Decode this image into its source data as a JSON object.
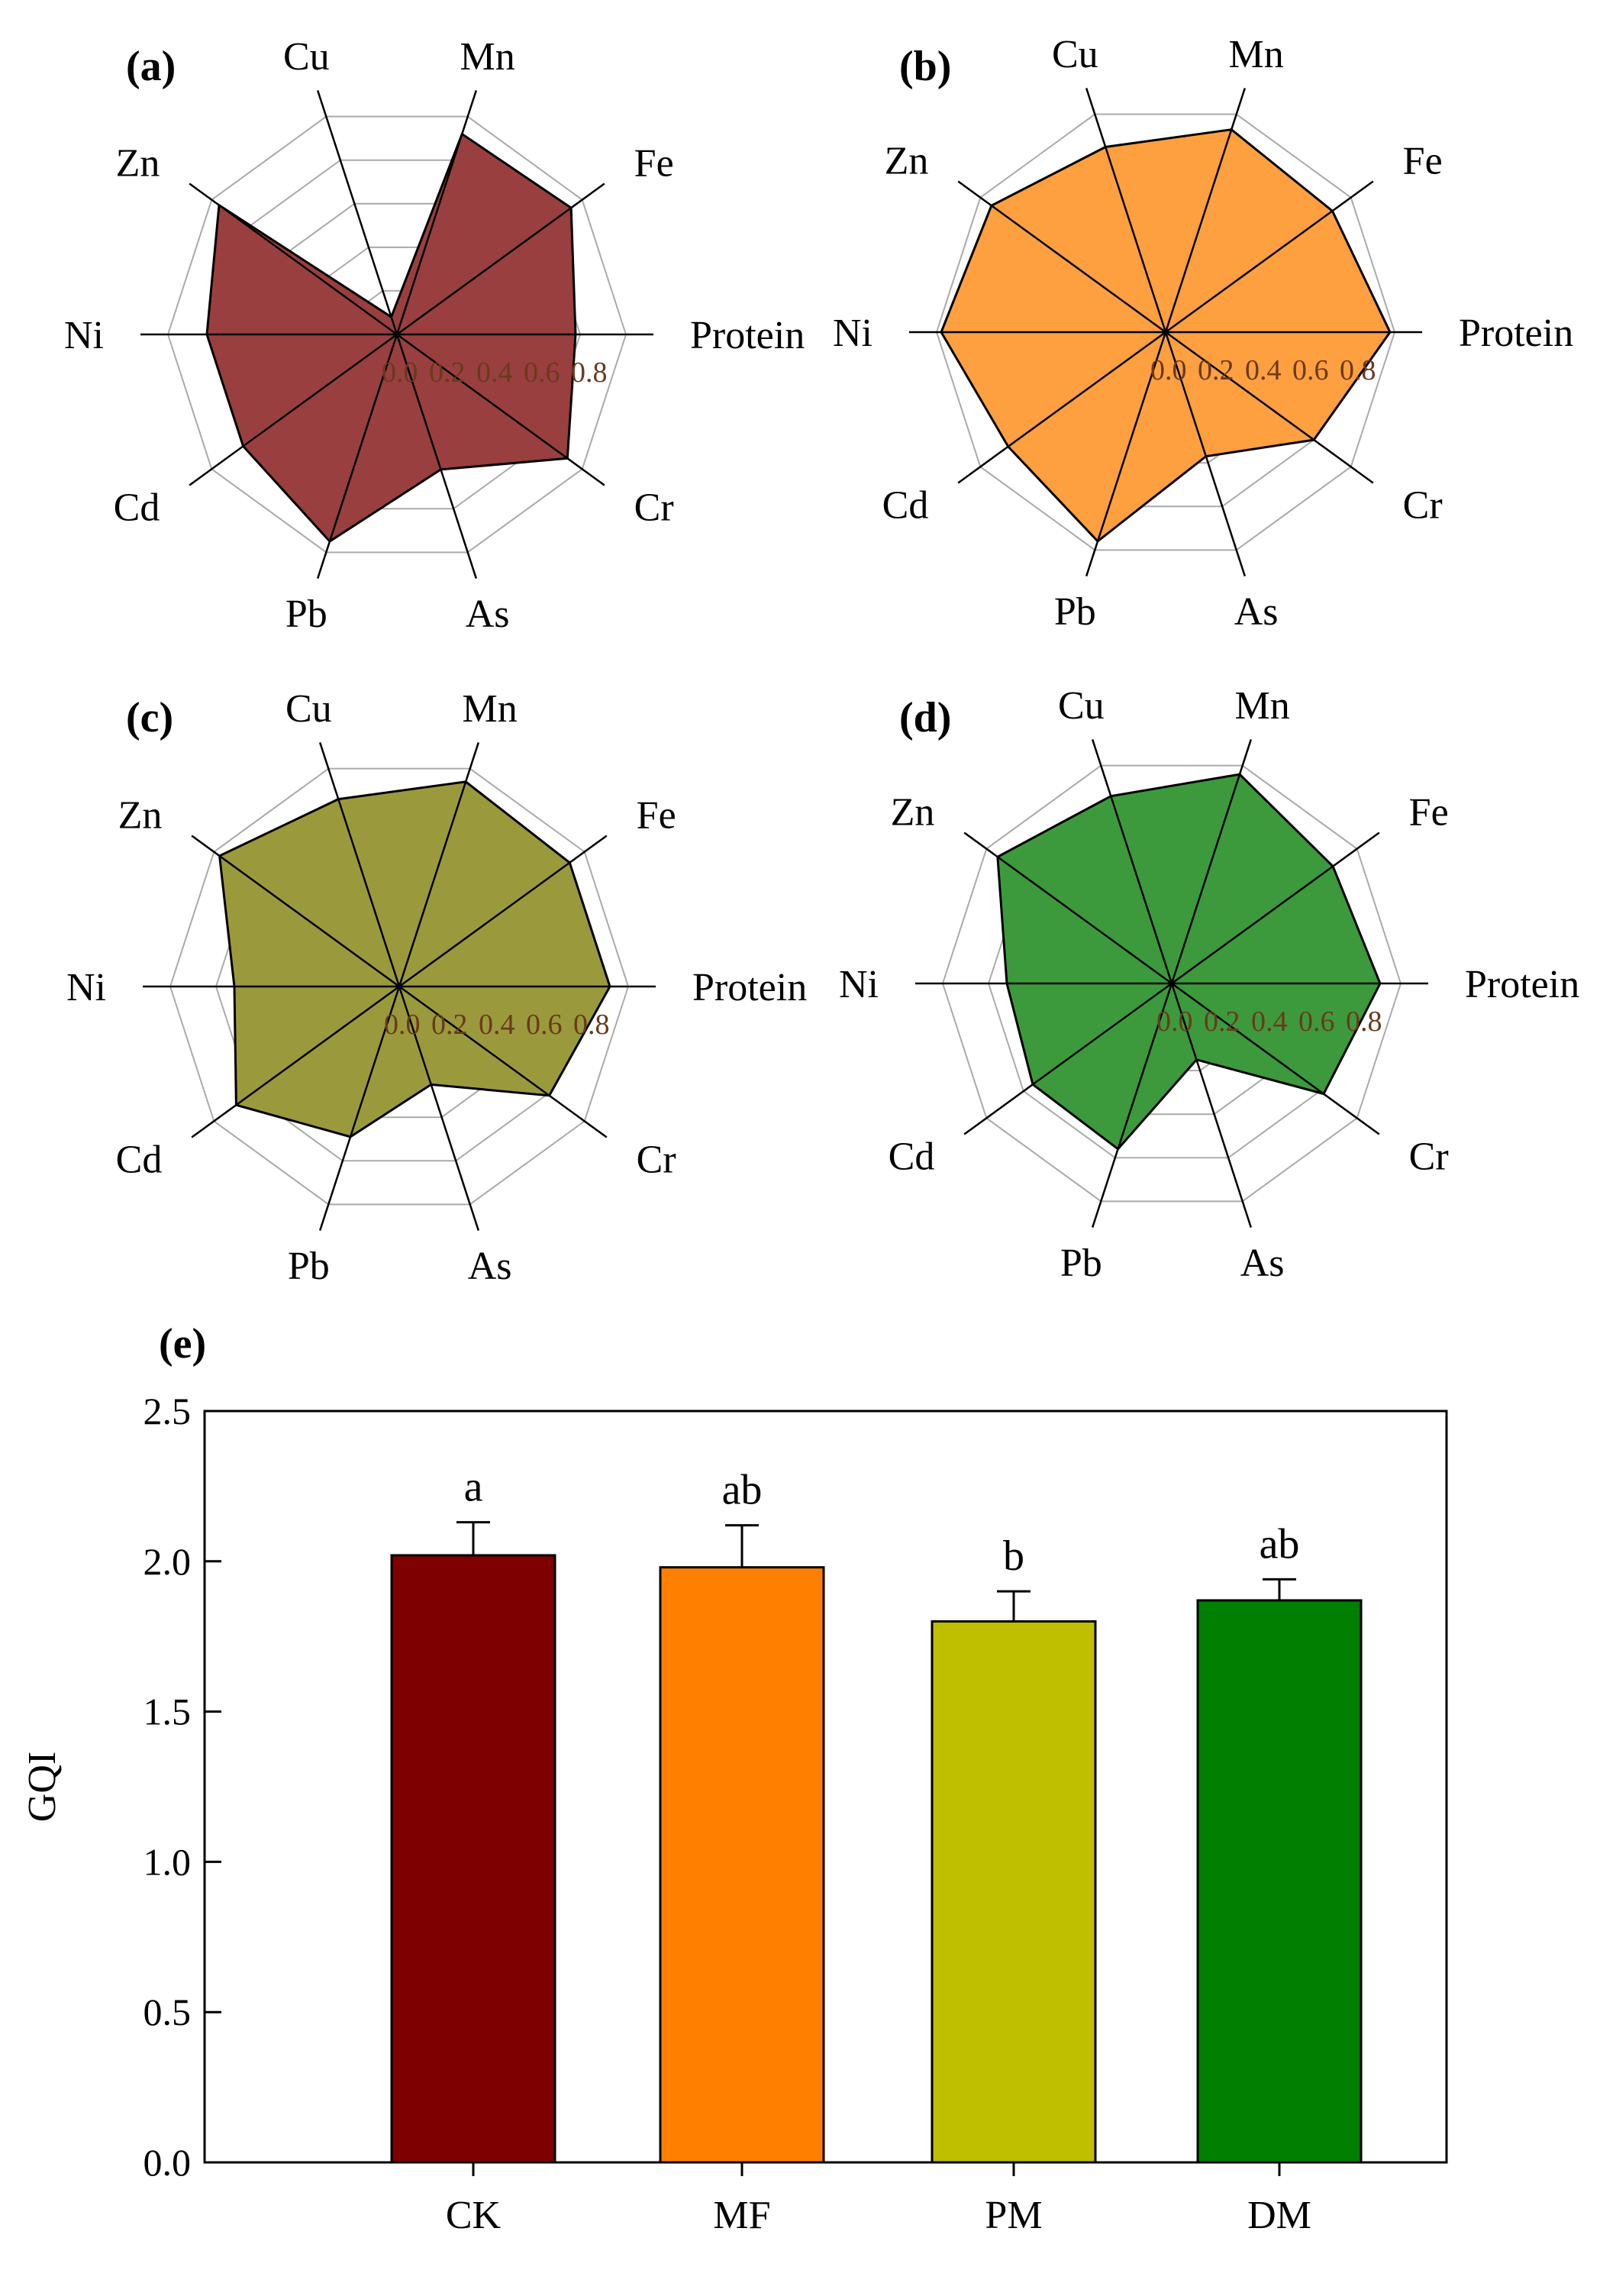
{
  "colors": {
    "CK": "#7f0000",
    "MF": "#ff7f00",
    "PM": "#bfbf00",
    "DM": "#007f00",
    "radar_fill": [
      "#993f3f",
      "#ffa040",
      "#9a9a3c",
      "#3c9a3c"
    ],
    "grid": "#aaaaaa"
  },
  "chart_data": [
    {
      "type": "radar",
      "panel_label": "(a)",
      "axes": [
        "Protein",
        "Fe",
        "Mn",
        "Cu",
        "Zn",
        "Ni",
        "Cd",
        "Pb",
        "As",
        "Cr"
      ],
      "ring_labels": [
        "0.0",
        "0.2",
        "0.4",
        "0.6",
        "0.8"
      ],
      "rmax": 1.0,
      "values": [
        0.78,
        0.94,
        0.92,
        0.08,
        0.96,
        0.83,
        0.83,
        0.95,
        0.62,
        0.92
      ]
    },
    {
      "type": "radar",
      "panel_label": "(b)",
      "axes": [
        "Protein",
        "Fe",
        "Mn",
        "Cu",
        "Zn",
        "Ni",
        "Cd",
        "Pb",
        "As",
        "Cr"
      ],
      "ring_labels": [
        "0.0",
        "0.2",
        "0.4",
        "0.6",
        "0.8"
      ],
      "rmax": 1.0,
      "values": [
        0.98,
        0.9,
        0.93,
        0.85,
        0.94,
        0.98,
        0.85,
        0.96,
        0.57,
        0.8
      ]
    },
    {
      "type": "radar",
      "panel_label": "(c)",
      "axes": [
        "Protein",
        "Fe",
        "Mn",
        "Cu",
        "Zn",
        "Ni",
        "Cd",
        "Pb",
        "As",
        "Cr"
      ],
      "ring_labels": [
        "0.0",
        "0.2",
        "0.4",
        "0.6",
        "0.8"
      ],
      "rmax": 1.0,
      "values": [
        0.92,
        0.92,
        0.94,
        0.86,
        0.97,
        0.72,
        0.88,
        0.69,
        0.45,
        0.81
      ]
    },
    {
      "type": "radar",
      "panel_label": "(d)",
      "axes": [
        "Protein",
        "Fe",
        "Mn",
        "Cu",
        "Zn",
        "Ni",
        "Cd",
        "Pb",
        "As",
        "Cr"
      ],
      "ring_labels": [
        "0.0",
        "0.2",
        "0.4",
        "0.6",
        "0.8"
      ],
      "rmax": 1.0,
      "values": [
        0.91,
        0.87,
        0.96,
        0.86,
        0.94,
        0.72,
        0.75,
        0.76,
        0.35,
        0.82
      ]
    },
    {
      "type": "bar",
      "panel_label": "(e)",
      "categories": [
        "CK",
        "MF",
        "PM",
        "DM"
      ],
      "values": [
        2.02,
        1.98,
        1.8,
        1.87
      ],
      "errors": [
        0.11,
        0.14,
        0.1,
        0.07
      ],
      "significance": [
        "a",
        "ab",
        "b",
        "ab"
      ],
      "ylabel": "GQI",
      "ylim": [
        0.0,
        2.5
      ],
      "yticks": [
        "0.0",
        "0.5",
        "1.0",
        "1.5",
        "2.0",
        "2.5"
      ]
    }
  ]
}
